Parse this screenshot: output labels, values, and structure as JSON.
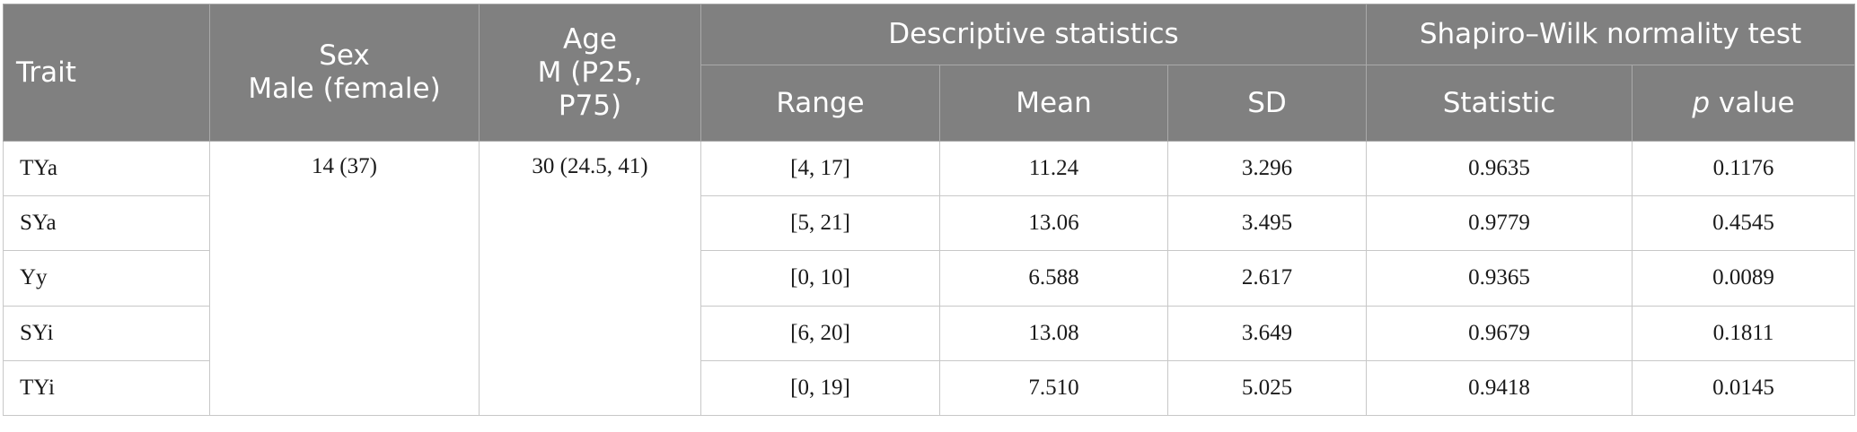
{
  "header": {
    "trait": "Trait",
    "sex_line1": "Sex",
    "sex_line2": "Male (female)",
    "age_line1": "Age",
    "age_line2": "M (P25,",
    "age_line3": "P75)",
    "descriptive": "Descriptive statistics",
    "shapiro": "Shapiro–Wilk normality test",
    "range": "Range",
    "mean": "Mean",
    "sd": "SD",
    "statistic": "Statistic",
    "p_italic": "p",
    "p_rest": " value"
  },
  "sex_value": "14 (37)",
  "age_value": "30 (24.5, 41)",
  "rows": [
    {
      "trait": "TYa",
      "range": "[4, 17]",
      "mean": "11.24",
      "sd": "3.296",
      "statistic": "0.9635",
      "p": "0.1176"
    },
    {
      "trait": "SYa",
      "range": "[5, 21]",
      "mean": "13.06",
      "sd": "3.495",
      "statistic": "0.9779",
      "p": "0.4545"
    },
    {
      "trait": "Yy",
      "range": "[0, 10]",
      "mean": "6.588",
      "sd": "2.617",
      "statistic": "0.9365",
      "p": "0.0089"
    },
    {
      "trait": "SYi",
      "range": "[6, 20]",
      "mean": "13.08",
      "sd": "3.649",
      "statistic": "0.9679",
      "p": "0.1811"
    },
    {
      "trait": "TYi",
      "range": "[0, 19]",
      "mean": "7.510",
      "sd": "5.025",
      "statistic": "0.9418",
      "p": "0.0145"
    }
  ]
}
